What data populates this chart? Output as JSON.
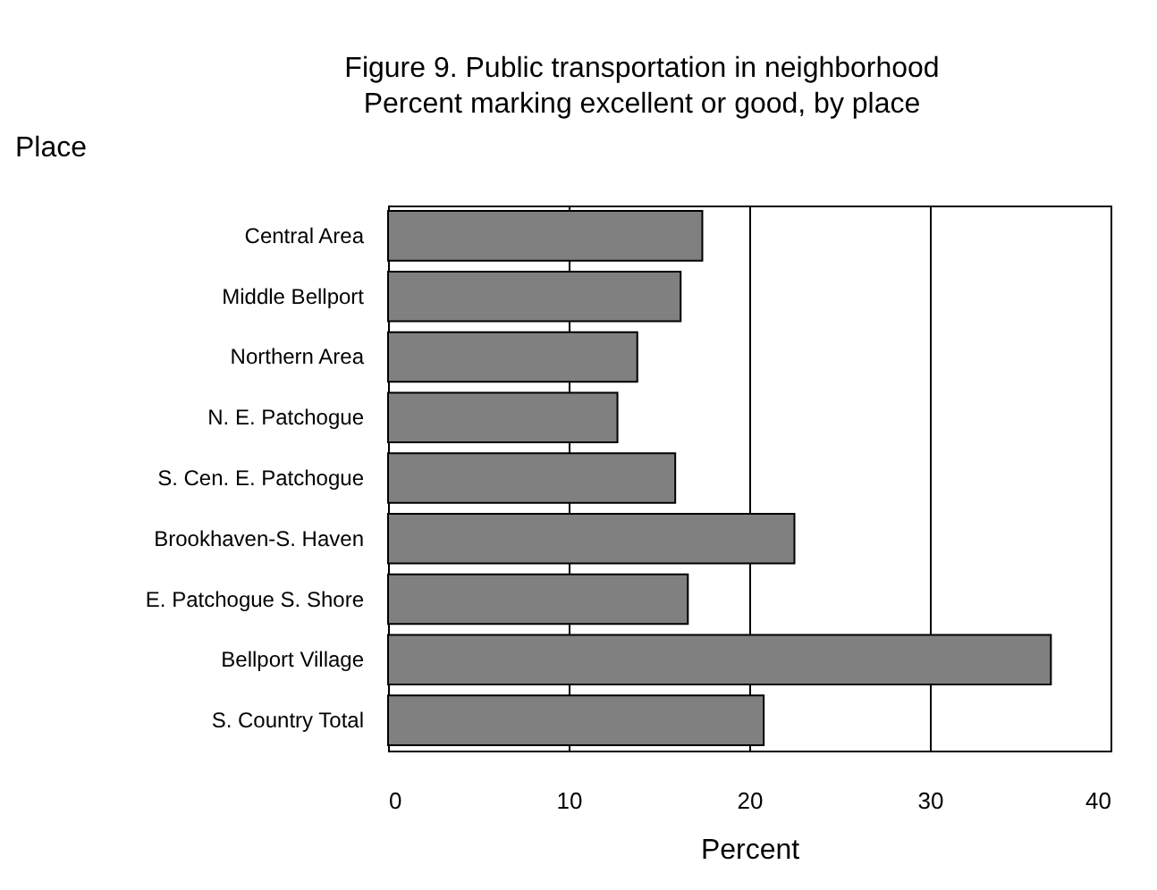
{
  "chart_data": {
    "type": "bar",
    "orientation": "horizontal",
    "title": "Figure  9.  Public transportation in neighborhood",
    "subtitle": "Percent marking excellent or good, by place",
    "xlabel": "Percent",
    "ylabel": "Place",
    "categories": [
      "Central Area",
      "Middle Bellport",
      "Northern Area",
      "N. E. Patchogue",
      "S. Cen. E. Patchogue",
      "Brookhaven-S. Haven",
      "E. Patchogue S. Shore",
      "Bellport Village",
      "S. Country Total"
    ],
    "values": [
      17.4,
      16.2,
      13.8,
      12.7,
      15.9,
      22.5,
      16.6,
      36.7,
      20.8
    ],
    "color": "#808080",
    "xlim": [
      0,
      40
    ],
    "xticks": [
      0,
      10,
      20,
      30,
      40
    ],
    "grid": true
  }
}
